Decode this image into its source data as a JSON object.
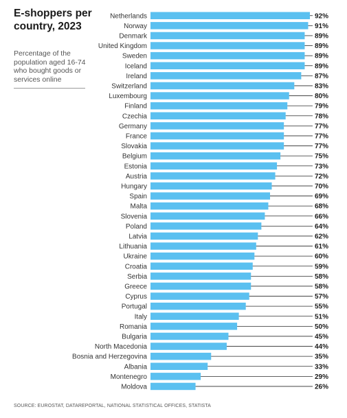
{
  "chart_data": {
    "type": "bar",
    "orientation": "horizontal",
    "title": "E-shoppers per country, 2023",
    "subtitle": "Percentage of the population aged 16-74 who bought goods or services online",
    "unit": "%",
    "bar_color": "#5bc0f0",
    "xlim": [
      0,
      92
    ],
    "grid": false,
    "categories": [
      "Netherlands",
      "Norway",
      "Denmark",
      "United Kingdom",
      "Sweden",
      "Iceland",
      "Ireland",
      "Switzerland",
      "Luxembourg",
      "Finland",
      "Czechia",
      "Germany",
      "France",
      "Slovakia",
      "Belgium",
      "Estonia",
      "Austria",
      "Hungary",
      "Spain",
      "Malta",
      "Slovenia",
      "Poland",
      "Latvia",
      "Lithuania",
      "Ukraine",
      "Croatia",
      "Serbia",
      "Greece",
      "Cyprus",
      "Portugal",
      "Italy",
      "Romania",
      "Bulgaria",
      "North Macedonia",
      "Bosnia and Herzegovina",
      "Albania",
      "Montenegro",
      "Moldova"
    ],
    "values": [
      92,
      91,
      89,
      89,
      89,
      89,
      87,
      83,
      80,
      79,
      78,
      77,
      77,
      77,
      75,
      73,
      72,
      70,
      69,
      68,
      66,
      64,
      62,
      61,
      60,
      59,
      58,
      58,
      57,
      55,
      51,
      50,
      45,
      44,
      35,
      33,
      29,
      26
    ]
  },
  "source": "SOURCE: EUROSTAT, DATAREPORTAL, NATIONAL STATISTICAL OFFICES, STATISTA"
}
